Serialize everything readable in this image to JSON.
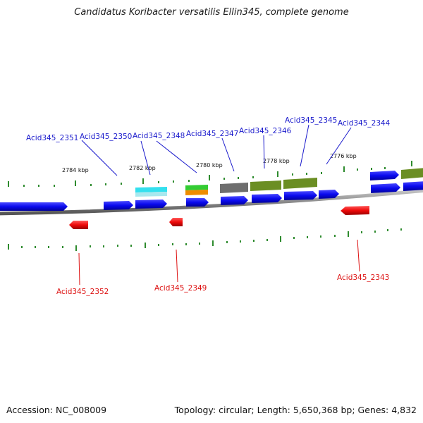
{
  "title": "Candidatus Koribacter versatilis Ellin345, complete genome",
  "footer": {
    "accession": "Accession: NC_008009",
    "summary": "Topology: circular; Length: 5,650,368 bp; Genes: 4,832"
  },
  "scale_labels": [
    "2784 kbp",
    "2782 kbp",
    "2780 kbp",
    "2778 kbp",
    "2776 kbp"
  ],
  "gene_labels_plus": [
    "Acid345_2351",
    "Acid345_2350",
    "Acid345_2348",
    "Acid345_2347",
    "Acid345_2346",
    "Acid345_2345",
    "Acid345_2344"
  ],
  "gene_labels_minus": [
    "Acid345_2352",
    "Acid345_2349",
    "Acid345_2343"
  ],
  "colors": {
    "plus_strand_gene": "#0a0aee",
    "minus_strand_gene": "#ee0a0a",
    "backbone": "#8a8a8a",
    "tick": "#2e8b2e",
    "cog_cyan": "#33e0ee",
    "cog_green": "#33cc33",
    "cog_orange": "#ee8c00",
    "cog_gray": "#6e6e6e",
    "cog_olive": "#6b8e23"
  }
}
